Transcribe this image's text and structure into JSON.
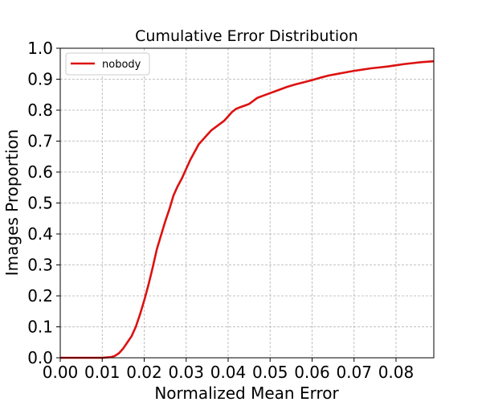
{
  "chart_data": {
    "type": "line",
    "title": "Cumulative Error Distribution",
    "xlabel": "Normalized Mean Error",
    "ylabel": "Images Proportion",
    "xlim": [
      0.0,
      0.089
    ],
    "ylim": [
      0.0,
      1.0
    ],
    "xticks": [
      "0.00",
      "0.01",
      "0.02",
      "0.03",
      "0.04",
      "0.05",
      "0.06",
      "0.07",
      "0.08"
    ],
    "yticks": [
      "0.0",
      "0.1",
      "0.2",
      "0.3",
      "0.4",
      "0.5",
      "0.6",
      "0.7",
      "0.8",
      "0.9",
      "1.0"
    ],
    "grid": true,
    "legend_position": "top-left",
    "series": [
      {
        "name": "nobody",
        "color": "#dd1111",
        "x": [
          0.0,
          0.01,
          0.012,
          0.013,
          0.014,
          0.015,
          0.016,
          0.017,
          0.018,
          0.019,
          0.02,
          0.021,
          0.022,
          0.023,
          0.024,
          0.025,
          0.026,
          0.027,
          0.028,
          0.029,
          0.03,
          0.031,
          0.032,
          0.033,
          0.034,
          0.035,
          0.036,
          0.037,
          0.038,
          0.039,
          0.04,
          0.041,
          0.042,
          0.043,
          0.044,
          0.045,
          0.046,
          0.047,
          0.048,
          0.05,
          0.052,
          0.054,
          0.056,
          0.058,
          0.06,
          0.062,
          0.064,
          0.066,
          0.068,
          0.07,
          0.072,
          0.074,
          0.076,
          0.078,
          0.08,
          0.082,
          0.084,
          0.086,
          0.088,
          0.089
        ],
        "y": [
          0.0,
          0.0,
          0.002,
          0.006,
          0.015,
          0.03,
          0.05,
          0.07,
          0.1,
          0.14,
          0.185,
          0.235,
          0.29,
          0.35,
          0.395,
          0.44,
          0.48,
          0.525,
          0.555,
          0.58,
          0.61,
          0.64,
          0.665,
          0.69,
          0.705,
          0.72,
          0.735,
          0.745,
          0.755,
          0.765,
          0.78,
          0.795,
          0.805,
          0.81,
          0.815,
          0.82,
          0.83,
          0.84,
          0.845,
          0.855,
          0.865,
          0.875,
          0.883,
          0.89,
          0.897,
          0.905,
          0.912,
          0.917,
          0.922,
          0.927,
          0.931,
          0.935,
          0.938,
          0.941,
          0.945,
          0.949,
          0.952,
          0.955,
          0.957,
          0.958
        ]
      }
    ]
  }
}
